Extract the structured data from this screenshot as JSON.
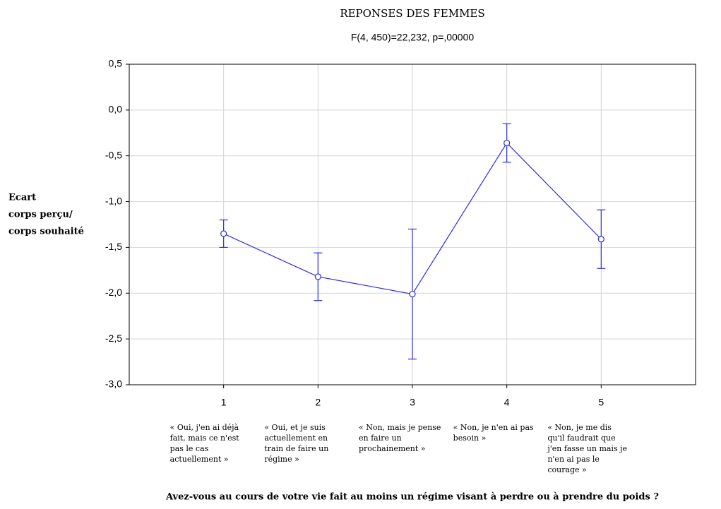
{
  "chart_data": {
    "type": "line",
    "title": "REPONSES DES FEMMES",
    "subtitle": "F(4, 450)=22,232,  p=,00000",
    "y_label": [
      "Ecart",
      "corps perçu/",
      "corps souhaité"
    ],
    "x_label": "Avez-vous au cours de votre vie fait au moins un régime visant à perdre ou à prendre du poids ?",
    "x": [
      1,
      2,
      3,
      4,
      5
    ],
    "xlim": [
      0,
      6
    ],
    "xticks": [
      1,
      2,
      3,
      4,
      5
    ],
    "category_labels": [
      [
        "« Oui, j'en ai déjà",
        "fait, mais ce n'est",
        "pas le cas",
        "actuellement »"
      ],
      [
        "« Oui, et je suis",
        "actuellement en",
        "train de faire un",
        "régime »"
      ],
      [
        "« Non, mais je pense",
        "en faire un",
        "prochainement »"
      ],
      [
        "« Non, je n'en ai pas",
        "besoin »"
      ],
      [
        "« Non, je me dis",
        "qu'il faudrait que",
        "j'en fasse un mais je",
        "n'en ai pas le",
        "courage »"
      ]
    ],
    "ylim": [
      -3.0,
      0.5
    ],
    "yticks": [
      {
        "value": 0.5,
        "label": "0,5"
      },
      {
        "value": 0.0,
        "label": "0,0"
      },
      {
        "value": -0.5,
        "label": "-0,5"
      },
      {
        "value": -1.0,
        "label": "-1,0"
      },
      {
        "value": -1.5,
        "label": "-1,5"
      },
      {
        "value": -2.0,
        "label": "-2,0"
      },
      {
        "value": -2.5,
        "label": "-2,5"
      },
      {
        "value": -3.0,
        "label": "-3,0"
      }
    ],
    "grid": true,
    "series": [
      {
        "color": "#2b2be6",
        "values": [
          -1.35,
          -1.82,
          -2.01,
          -0.36,
          -1.41
        ],
        "errors": [
          0.15,
          0.26,
          0.71,
          0.21,
          0.32
        ]
      }
    ]
  }
}
